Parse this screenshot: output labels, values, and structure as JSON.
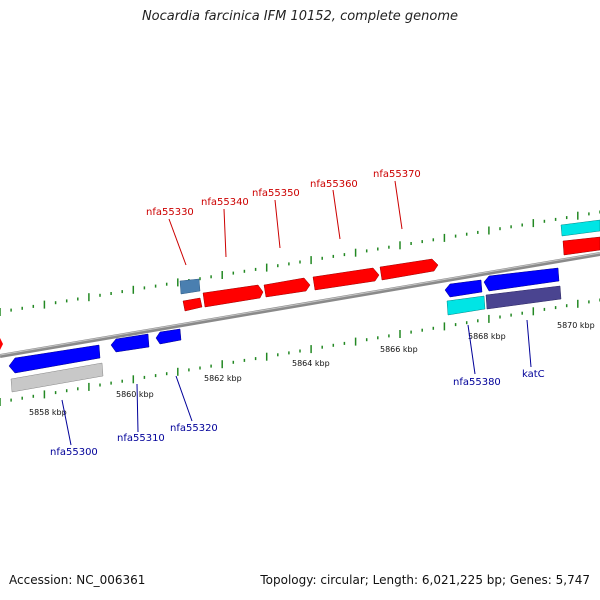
{
  "title": "Nocardia farcinica IFM 10152, complete genome",
  "footer": {
    "accession": "Accession: NC_006361",
    "summary": "Topology: circular; Length: 6,021,225 bp; Genes: 5,747"
  },
  "scale_labels": [
    "5858 kbp",
    "5860 kbp",
    "5862 kbp",
    "5864 kbp",
    "5866 kbp",
    "5868 kbp",
    "5870 kbp"
  ],
  "forward_genes": [
    "nfa55330",
    "nfa55340",
    "nfa55350",
    "nfa55360",
    "nfa55370"
  ],
  "reverse_genes": [
    "nfa55300",
    "nfa55310",
    "nfa55320",
    "nfa55380",
    "katC"
  ],
  "colors": {
    "forward": "#ff0000",
    "reverse": "#0000ff",
    "backbone": "#888888",
    "ticks": "#228822",
    "cyan": "#00e5e5",
    "steelblue": "#4a7fb0",
    "grey": "#c8c8c8",
    "slate": "#4a4490"
  }
}
